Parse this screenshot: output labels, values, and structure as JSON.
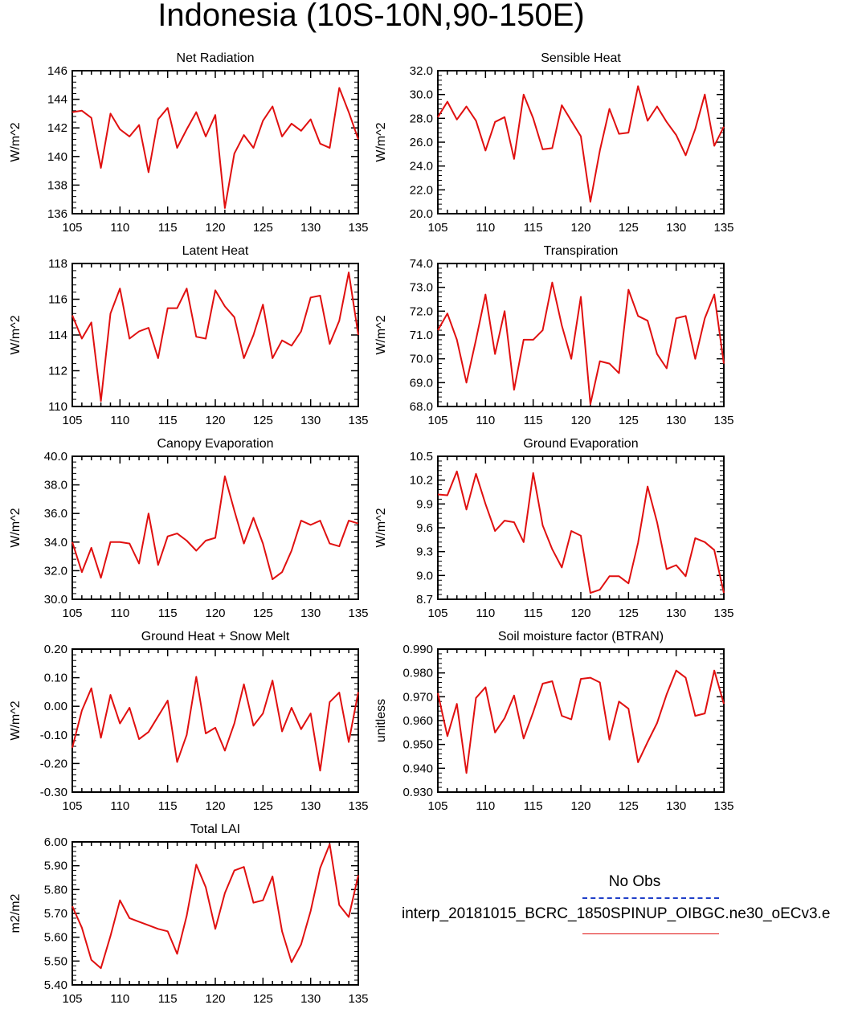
{
  "title": "Indonesia (10S-10N,90-150E)",
  "colors": {
    "model": "#e01010",
    "obs": "#1f3fc8",
    "axis": "#000000"
  },
  "legend": {
    "obs_label": "No Obs",
    "case_label": "interp_20181015_BCRC_1850SPINUP_OIBGC.ne30_oECv3.e"
  },
  "x_ticks": [
    "105",
    "110",
    "115",
    "120",
    "125",
    "130",
    "135"
  ],
  "chart_data": [
    {
      "type": "line",
      "title": "Net Radiation",
      "ylabel": "W/m^2",
      "xlim": [
        105,
        135
      ],
      "ylim": [
        136,
        146
      ],
      "y_ticks": [
        "136",
        "138",
        "140",
        "142",
        "144",
        "146"
      ],
      "x": [
        105,
        106,
        107,
        108,
        109,
        110,
        111,
        112,
        113,
        114,
        115,
        116,
        117,
        118,
        119,
        120,
        121,
        122,
        123,
        124,
        125,
        126,
        127,
        128,
        129,
        130,
        131,
        132,
        133,
        134,
        135
      ],
      "series": [
        {
          "values": [
            143.1,
            143.2,
            142.7,
            139.2,
            143.0,
            141.9,
            141.4,
            142.2,
            138.9,
            142.6,
            143.4,
            140.6,
            141.9,
            143.1,
            141.4,
            142.9,
            136.4,
            140.2,
            141.5,
            140.6,
            142.5,
            143.5,
            141.4,
            142.3,
            141.8,
            142.6,
            140.9,
            140.6,
            144.8,
            143.1,
            141.2
          ]
        }
      ]
    },
    {
      "type": "line",
      "title": "Sensible Heat",
      "ylabel": "W/m^2",
      "xlim": [
        105,
        135
      ],
      "ylim": [
        20,
        32
      ],
      "y_ticks": [
        "20.0",
        "22.0",
        "24.0",
        "26.0",
        "28.0",
        "30.0",
        "32.0"
      ],
      "x": [
        105,
        106,
        107,
        108,
        109,
        110,
        111,
        112,
        113,
        114,
        115,
        116,
        117,
        118,
        119,
        120,
        121,
        122,
        123,
        124,
        125,
        126,
        127,
        128,
        129,
        130,
        131,
        132,
        133,
        134,
        135
      ],
      "series": [
        {
          "values": [
            28.1,
            29.4,
            27.9,
            29.0,
            27.8,
            25.3,
            27.7,
            28.1,
            24.6,
            30.0,
            28.0,
            25.4,
            25.5,
            29.1,
            27.8,
            26.5,
            21.0,
            25.3,
            28.8,
            26.7,
            26.8,
            30.7,
            27.8,
            29.0,
            27.7,
            26.6,
            24.9,
            27.1,
            30.0,
            25.7,
            27.3
          ]
        }
      ]
    },
    {
      "type": "line",
      "title": "Latent Heat",
      "ylabel": "W/m^2",
      "xlim": [
        105,
        135
      ],
      "ylim": [
        110,
        118
      ],
      "y_ticks": [
        "110",
        "112",
        "114",
        "116",
        "118"
      ],
      "x": [
        105,
        106,
        107,
        108,
        109,
        110,
        111,
        112,
        113,
        114,
        115,
        116,
        117,
        118,
        119,
        120,
        121,
        122,
        123,
        124,
        125,
        126,
        127,
        128,
        129,
        130,
        131,
        132,
        133,
        134,
        135
      ],
      "series": [
        {
          "values": [
            115.1,
            113.8,
            114.7,
            110.3,
            115.2,
            116.6,
            113.8,
            114.2,
            114.4,
            112.7,
            115.5,
            115.5,
            116.6,
            113.9,
            113.8,
            116.5,
            115.6,
            115.0,
            112.7,
            114.0,
            115.7,
            112.7,
            113.7,
            113.4,
            114.2,
            116.1,
            116.2,
            113.5,
            114.8,
            117.5,
            114.0
          ]
        }
      ]
    },
    {
      "type": "line",
      "title": "Transpiration",
      "ylabel": "W/m^2",
      "xlim": [
        105,
        135
      ],
      "ylim": [
        68,
        74
      ],
      "y_ticks": [
        "68.0",
        "69.0",
        "70.0",
        "71.0",
        "72.0",
        "73.0",
        "74.0"
      ],
      "x": [
        105,
        106,
        107,
        108,
        109,
        110,
        111,
        112,
        113,
        114,
        115,
        116,
        117,
        118,
        119,
        120,
        121,
        122,
        123,
        124,
        125,
        126,
        127,
        128,
        129,
        130,
        131,
        132,
        133,
        134,
        135
      ],
      "series": [
        {
          "values": [
            71.2,
            71.9,
            70.8,
            69.0,
            70.8,
            72.7,
            70.2,
            72.0,
            68.7,
            70.8,
            70.8,
            71.2,
            73.2,
            71.4,
            70.0,
            72.6,
            68.1,
            69.9,
            69.8,
            69.4,
            72.9,
            71.8,
            71.6,
            70.2,
            69.6,
            71.7,
            71.8,
            70.0,
            71.7,
            72.7,
            69.8
          ]
        }
      ]
    },
    {
      "type": "line",
      "title": "Canopy Evaporation",
      "ylabel": "W/m^2",
      "xlim": [
        105,
        135
      ],
      "ylim": [
        30,
        40
      ],
      "y_ticks": [
        "30.0",
        "32.0",
        "34.0",
        "36.0",
        "38.0",
        "40.0"
      ],
      "x": [
        105,
        106,
        107,
        108,
        109,
        110,
        111,
        112,
        113,
        114,
        115,
        116,
        117,
        118,
        119,
        120,
        121,
        122,
        123,
        124,
        125,
        126,
        127,
        128,
        129,
        130,
        131,
        132,
        133,
        134,
        135
      ],
      "series": [
        {
          "values": [
            34.0,
            31.9,
            33.6,
            31.5,
            34.0,
            34.0,
            33.9,
            32.5,
            36.0,
            32.4,
            34.4,
            34.6,
            34.1,
            33.4,
            34.1,
            34.3,
            38.6,
            36.2,
            33.9,
            35.7,
            33.9,
            31.4,
            31.9,
            33.4,
            35.5,
            35.2,
            35.5,
            33.9,
            33.7,
            35.5,
            35.3
          ]
        }
      ]
    },
    {
      "type": "line",
      "title": "Ground Evaporation",
      "ylabel": "W/m^2",
      "xlim": [
        105,
        135
      ],
      "ylim": [
        8.7,
        10.5
      ],
      "y_ticks": [
        "8.7",
        "9.0",
        "9.3",
        "9.6",
        "9.9",
        "10.2",
        "10.5"
      ],
      "x": [
        105,
        106,
        107,
        108,
        109,
        110,
        111,
        112,
        113,
        114,
        115,
        116,
        117,
        118,
        119,
        120,
        121,
        122,
        123,
        124,
        125,
        126,
        127,
        128,
        129,
        130,
        131,
        132,
        133,
        134,
        135
      ],
      "series": [
        {
          "values": [
            10.02,
            10.01,
            10.31,
            9.83,
            10.28,
            9.9,
            9.56,
            9.69,
            9.67,
            9.42,
            10.29,
            9.63,
            9.33,
            9.1,
            9.56,
            9.5,
            8.78,
            8.82,
            8.99,
            8.99,
            8.9,
            9.41,
            10.12,
            9.67,
            9.08,
            9.13,
            8.99,
            9.47,
            9.42,
            9.32,
            8.78
          ]
        }
      ]
    },
    {
      "type": "line",
      "title": "Ground Heat + Snow Melt",
      "ylabel": "W/m^2",
      "xlim": [
        105,
        135
      ],
      "ylim": [
        -0.3,
        0.2
      ],
      "y_ticks": [
        "-0.30",
        "-0.20",
        "-0.10",
        "0.00",
        "0.10",
        "0.20"
      ],
      "x": [
        105,
        106,
        107,
        108,
        109,
        110,
        111,
        112,
        113,
        114,
        115,
        116,
        117,
        118,
        119,
        120,
        121,
        122,
        123,
        124,
        125,
        126,
        127,
        128,
        129,
        130,
        131,
        132,
        133,
        134,
        135
      ],
      "series": [
        {
          "values": [
            -0.145,
            -0.015,
            0.063,
            -0.11,
            0.04,
            -0.06,
            -0.005,
            -0.115,
            -0.09,
            -0.035,
            0.02,
            -0.195,
            -0.1,
            0.103,
            -0.095,
            -0.075,
            -0.155,
            -0.06,
            0.077,
            -0.068,
            -0.025,
            0.09,
            -0.088,
            -0.005,
            -0.08,
            -0.025,
            -0.225,
            0.015,
            0.048,
            -0.125,
            0.05
          ]
        }
      ]
    },
    {
      "type": "line",
      "title": "Soil moisture factor (BTRAN)",
      "ylabel": "unitless",
      "xlim": [
        105,
        135
      ],
      "ylim": [
        0.93,
        0.99
      ],
      "y_ticks": [
        "0.930",
        "0.940",
        "0.950",
        "0.960",
        "0.970",
        "0.980",
        "0.990"
      ],
      "x": [
        105,
        106,
        107,
        108,
        109,
        110,
        111,
        112,
        113,
        114,
        115,
        116,
        117,
        118,
        119,
        120,
        121,
        122,
        123,
        124,
        125,
        126,
        127,
        128,
        129,
        130,
        131,
        132,
        133,
        134,
        135
      ],
      "series": [
        {
          "values": [
            0.9715,
            0.9535,
            0.967,
            0.938,
            0.9695,
            0.974,
            0.955,
            0.961,
            0.9705,
            0.9525,
            0.9635,
            0.9755,
            0.9765,
            0.962,
            0.9605,
            0.9775,
            0.978,
            0.976,
            0.952,
            0.968,
            0.965,
            0.9425,
            0.951,
            0.959,
            0.971,
            0.981,
            0.978,
            0.962,
            0.963,
            0.981,
            0.967
          ]
        }
      ]
    },
    {
      "type": "line",
      "title": "Total LAI",
      "ylabel": "m2/m2",
      "xlim": [
        105,
        135
      ],
      "ylim": [
        5.4,
        6.0
      ],
      "y_ticks": [
        "5.40",
        "5.50",
        "5.60",
        "5.70",
        "5.80",
        "5.90",
        "6.00"
      ],
      "x": [
        105,
        106,
        107,
        108,
        109,
        110,
        111,
        112,
        113,
        114,
        115,
        116,
        117,
        118,
        119,
        120,
        121,
        122,
        123,
        124,
        125,
        126,
        127,
        128,
        129,
        130,
        131,
        132,
        133,
        134,
        135
      ],
      "series": [
        {
          "values": [
            5.73,
            5.64,
            5.505,
            5.47,
            5.605,
            5.755,
            5.68,
            5.665,
            5.65,
            5.635,
            5.625,
            5.53,
            5.69,
            5.905,
            5.81,
            5.635,
            5.785,
            5.88,
            5.895,
            5.745,
            5.755,
            5.855,
            5.625,
            5.495,
            5.57,
            5.71,
            5.89,
            5.99,
            5.735,
            5.685,
            5.86
          ]
        }
      ]
    }
  ]
}
